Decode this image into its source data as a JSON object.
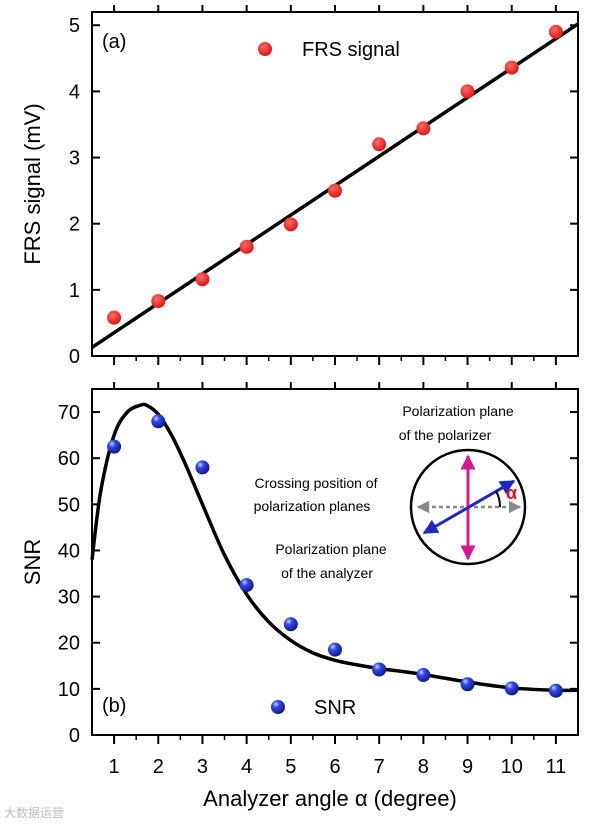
{
  "chart_data": [
    {
      "type": "scatter",
      "panel_label": "(a)",
      "title": "",
      "xlabel": "",
      "ylabel": "FRS signal (mV)",
      "xlim": [
        0.5,
        11.5
      ],
      "ylim": [
        0,
        5.2
      ],
      "yticks": [
        0,
        1,
        2,
        3,
        4,
        5
      ],
      "series": [
        {
          "name": "FRS signal",
          "marker": "circle",
          "color": "#e41e1e",
          "x": [
            1,
            2,
            3,
            4,
            5,
            6,
            7,
            8,
            9,
            10,
            11
          ],
          "y": [
            0.58,
            0.83,
            1.16,
            1.65,
            1.99,
            2.5,
            3.2,
            3.44,
            4.0,
            4.36,
            4.9
          ]
        },
        {
          "name": "linear fit",
          "type": "line",
          "color": "#000000",
          "x": [
            0.5,
            11.5
          ],
          "y": [
            0.13,
            5.02
          ]
        }
      ],
      "legend": {
        "position": "top-center",
        "entries": [
          "FRS signal"
        ]
      }
    },
    {
      "type": "scatter",
      "panel_label": "(b)",
      "title": "",
      "xlabel": "Analyzer angle α (degree)",
      "ylabel": "SNR",
      "xlim": [
        0.5,
        11.5
      ],
      "ylim": [
        0,
        75
      ],
      "xticks": [
        1,
        2,
        3,
        4,
        5,
        6,
        7,
        8,
        9,
        10,
        11
      ],
      "yticks": [
        0,
        10,
        20,
        30,
        40,
        50,
        60,
        70
      ],
      "series": [
        {
          "name": "SNR",
          "marker": "sphere",
          "color": "#1f2fd6",
          "x": [
            1,
            2,
            3,
            4,
            5,
            6,
            7,
            8,
            9,
            10,
            11
          ],
          "y": [
            62.5,
            68,
            58,
            32.5,
            24,
            18.5,
            14.2,
            13,
            11,
            10.1,
            9.6
          ]
        },
        {
          "name": "fit curve",
          "type": "line",
          "color": "#000000",
          "x": [
            0.5,
            0.7,
            1.0,
            1.3,
            1.6,
            1.75,
            2.0,
            2.3,
            2.6,
            3.0,
            3.5,
            4.0,
            4.5,
            5.0,
            5.5,
            6.0,
            6.5,
            7.0,
            7.5,
            8.0,
            9.0,
            10.0,
            11.0,
            11.5
          ],
          "y": [
            38,
            53,
            65,
            70,
            71.5,
            71.4,
            69.5,
            65,
            59,
            50,
            39,
            30.5,
            24.5,
            20.5,
            17.8,
            16.2,
            15.2,
            14.4,
            13.8,
            13.1,
            11.5,
            10.2,
            9.7,
            9.7
          ]
        }
      ],
      "legend": {
        "position": "bottom-center",
        "entries": [
          "SNR"
        ]
      },
      "inset": {
        "label_polarizer_line1": "Polarization plane",
        "label_polarizer_line2": "of the polarizer",
        "label_crossing_line1": "Crossing position of",
        "label_crossing_line2": "polarization planes",
        "label_analyzer_line1": "Polarization plane",
        "label_analyzer_line2": "of the analyzer",
        "angle_symbol": "α",
        "colors": {
          "polarizer": "#d61a8c",
          "analyzer": "#1c28c8",
          "crossing": "#888888",
          "angle": "#e01010"
        }
      }
    }
  ],
  "watermark": "大数据运营"
}
